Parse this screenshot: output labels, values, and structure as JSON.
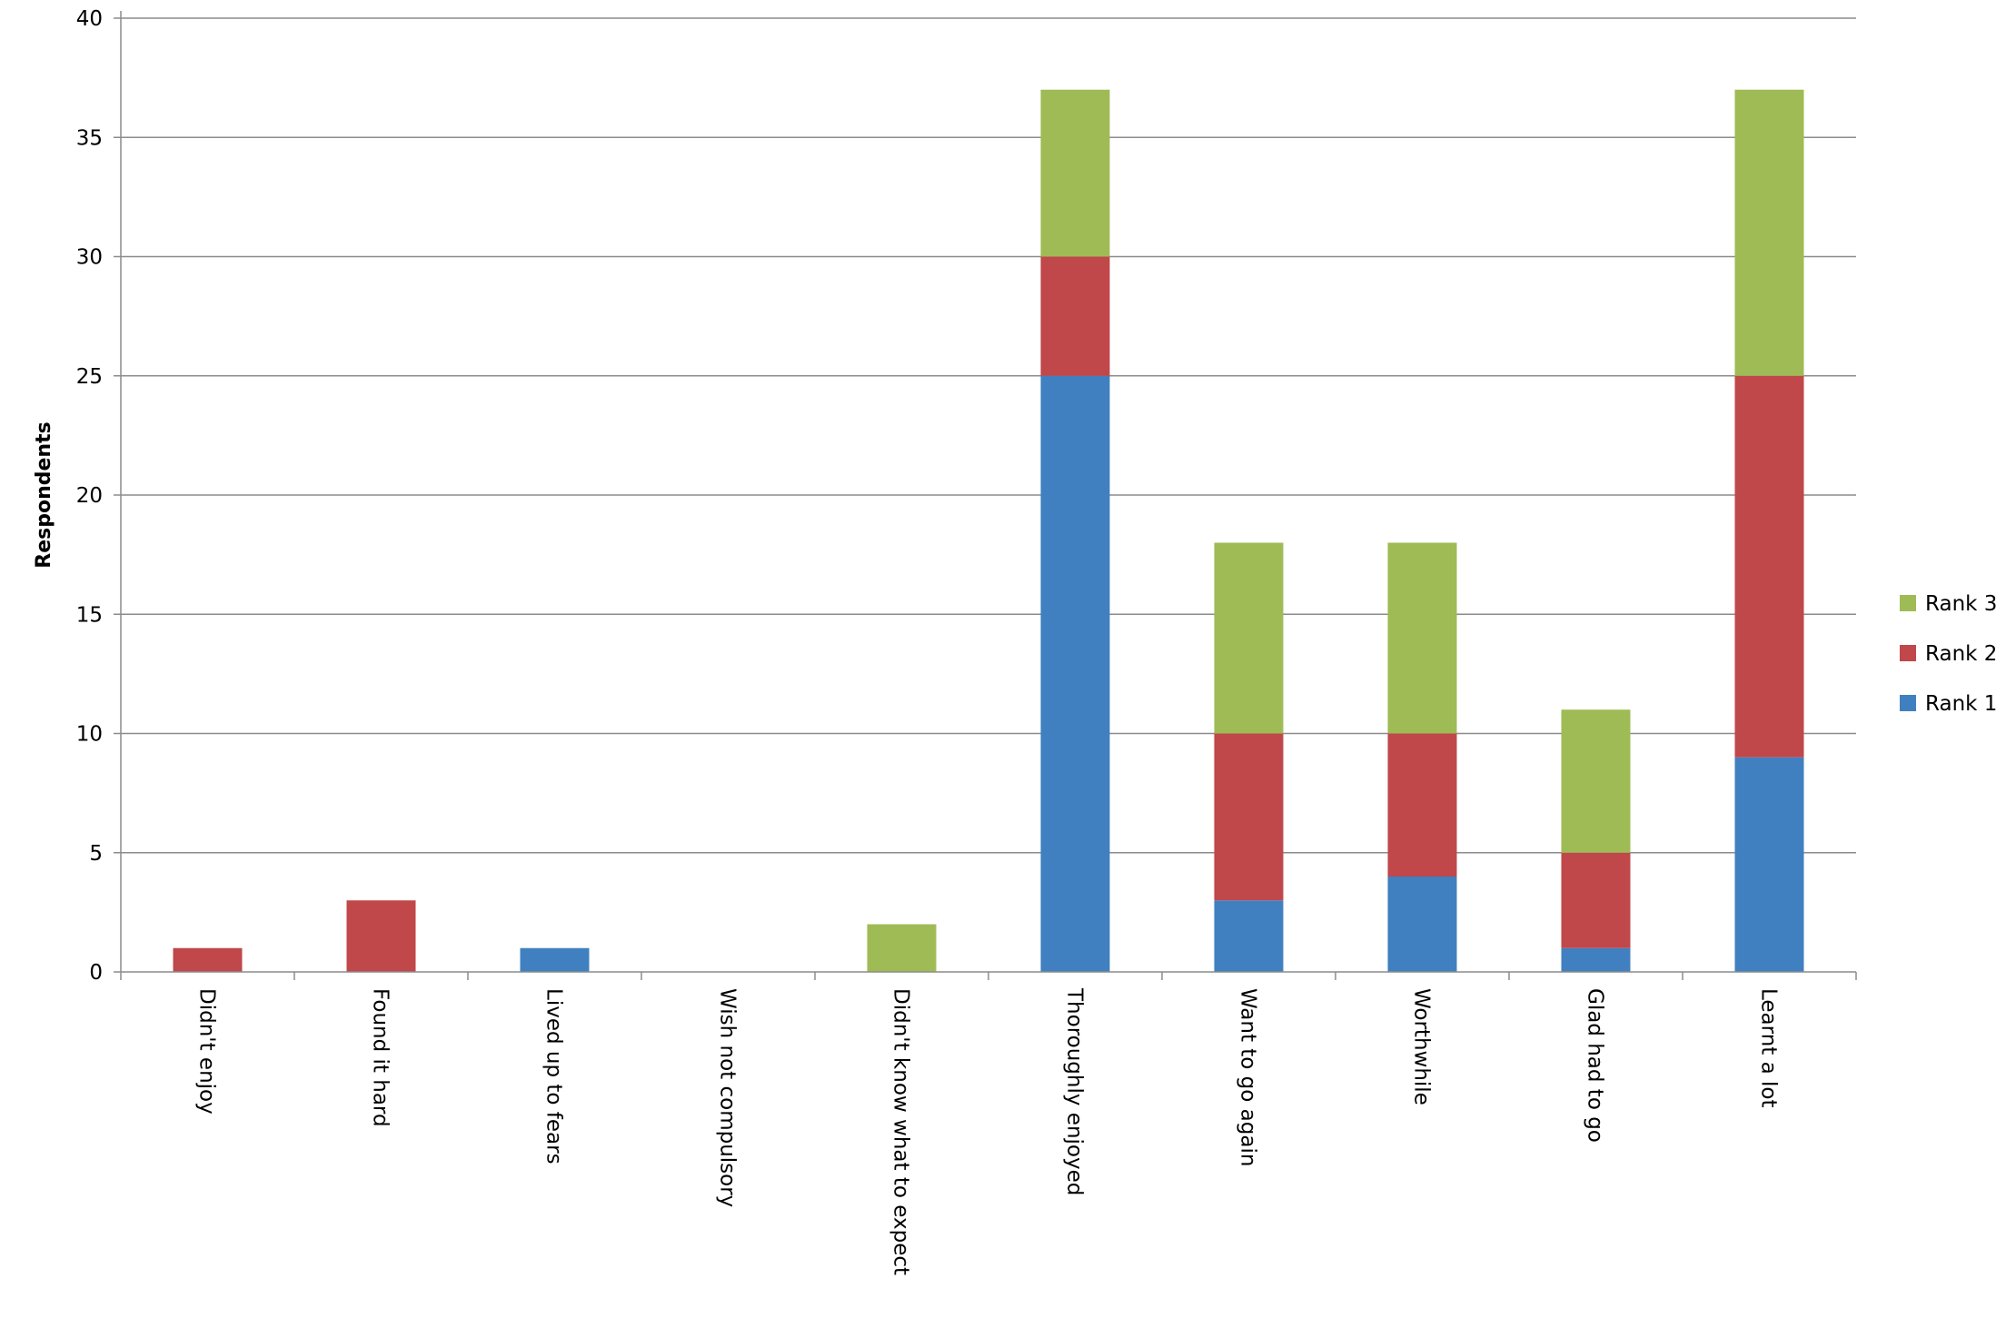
{
  "chart_data": {
    "type": "bar",
    "stacked": true,
    "title": "",
    "xlabel": "",
    "ylabel": "Respondents",
    "ylim": [
      0,
      40
    ],
    "yticks": [
      0,
      5,
      10,
      15,
      20,
      25,
      30,
      35,
      40
    ],
    "grid": true,
    "legend_position": "right",
    "categories": [
      "Didn't enjoy",
      "Found it hard",
      "Lived up to fears",
      "Wish not compulsory",
      "Didn't know what to expect",
      "Thoroughly enjoyed",
      "Want to go again",
      "Worthwhile",
      "Glad had to go",
      "Learnt a lot"
    ],
    "series": [
      {
        "name": "Rank 1",
        "color": "#4080c0",
        "values": [
          0,
          0,
          1,
          0,
          0,
          25,
          3,
          4,
          1,
          9
        ]
      },
      {
        "name": "Rank 2",
        "color": "#c0474a",
        "values": [
          1,
          3,
          0,
          0,
          0,
          5,
          7,
          6,
          4,
          16
        ]
      },
      {
        "name": "Rank 3",
        "color": "#9fbb55",
        "values": [
          0,
          0,
          0,
          0,
          2,
          7,
          8,
          8,
          6,
          12
        ]
      }
    ],
    "legend_order": [
      "Rank 3",
      "Rank 2",
      "Rank 1"
    ]
  }
}
